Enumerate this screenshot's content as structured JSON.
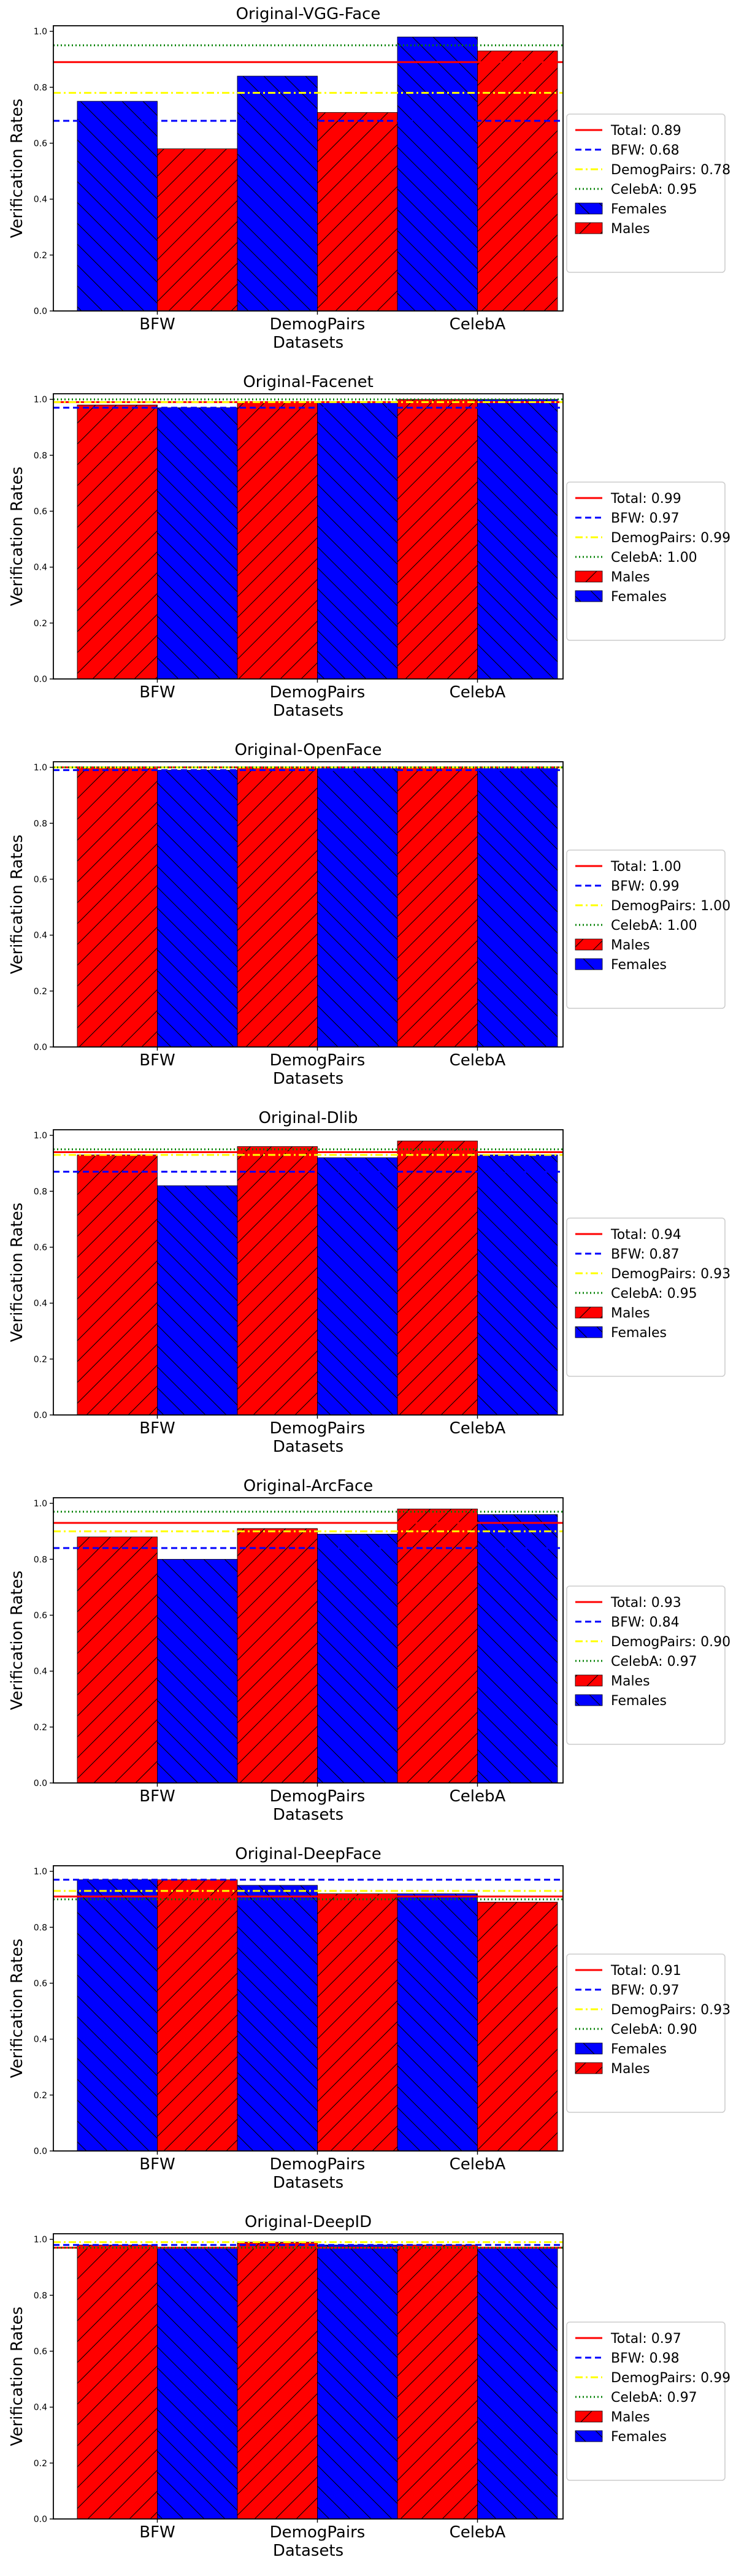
{
  "figure": {
    "background": "#ffffff"
  },
  "chart_data": [
    {
      "type": "bar",
      "title": "Original-VGG-Face",
      "xlabel": "Datasets",
      "ylabel": "Verification Rates",
      "categories": [
        "BFW",
        "DemogPairs",
        "CelebA"
      ],
      "ylim": [
        0,
        1.02
      ],
      "yticks": [
        "0.0",
        "0.2",
        "0.4",
        "0.6",
        "0.8",
        "1.0"
      ],
      "series": [
        {
          "name": "Females",
          "values": [
            0.75,
            0.84,
            0.98
          ],
          "color": "#0000ff",
          "hatch": "backslash"
        },
        {
          "name": "Males",
          "values": [
            0.58,
            0.71,
            0.93
          ],
          "color": "#ff0000",
          "hatch": "slash"
        }
      ],
      "lines": [
        {
          "name": "Total: 0.89",
          "value": 0.89,
          "color": "#ff0000",
          "style": "solid"
        },
        {
          "name": "BFW: 0.68",
          "value": 0.68,
          "color": "#0000ff",
          "style": "dashed"
        },
        {
          "name": "DemogPairs: 0.78",
          "value": 0.78,
          "color": "#ffff00",
          "style": "dashdot"
        },
        {
          "name": "CelebA: 0.95",
          "value": 0.95,
          "color": "#008000",
          "style": "dotted"
        }
      ],
      "legend_position": "right"
    },
    {
      "type": "bar",
      "title": "Original-Facenet",
      "xlabel": "Datasets",
      "ylabel": "Verification Rates",
      "categories": [
        "BFW",
        "DemogPairs",
        "CelebA"
      ],
      "ylim": [
        0,
        1.02
      ],
      "yticks": [
        "0.0",
        "0.2",
        "0.4",
        "0.6",
        "0.8",
        "1.0"
      ],
      "series": [
        {
          "name": "Males",
          "values": [
            0.98,
            0.99,
            1.0
          ],
          "color": "#ff0000",
          "hatch": "slash"
        },
        {
          "name": "Females",
          "values": [
            0.97,
            0.99,
            1.0
          ],
          "color": "#0000ff",
          "hatch": "backslash"
        }
      ],
      "lines": [
        {
          "name": "Total: 0.99",
          "value": 0.99,
          "color": "#ff0000",
          "style": "solid"
        },
        {
          "name": "BFW: 0.97",
          "value": 0.97,
          "color": "#0000ff",
          "style": "dashed"
        },
        {
          "name": "DemogPairs: 0.99",
          "value": 0.99,
          "color": "#ffff00",
          "style": "dashdot"
        },
        {
          "name": "CelebA: 1.00",
          "value": 1.0,
          "color": "#008000",
          "style": "dotted"
        }
      ],
      "legend_position": "right"
    },
    {
      "type": "bar",
      "title": "Original-OpenFace",
      "xlabel": "Datasets",
      "ylabel": "Verification Rates",
      "categories": [
        "BFW",
        "DemogPairs",
        "CelebA"
      ],
      "ylim": [
        0,
        1.02
      ],
      "yticks": [
        "0.0",
        "0.2",
        "0.4",
        "0.6",
        "0.8",
        "1.0"
      ],
      "series": [
        {
          "name": "Males",
          "values": [
            1.0,
            1.0,
            1.0
          ],
          "color": "#ff0000",
          "hatch": "slash"
        },
        {
          "name": "Females",
          "values": [
            0.99,
            1.0,
            1.0
          ],
          "color": "#0000ff",
          "hatch": "backslash"
        }
      ],
      "lines": [
        {
          "name": "Total: 1.00",
          "value": 1.0,
          "color": "#ff0000",
          "style": "solid"
        },
        {
          "name": "BFW: 0.99",
          "value": 0.99,
          "color": "#0000ff",
          "style": "dashed"
        },
        {
          "name": "DemogPairs: 1.00",
          "value": 1.0,
          "color": "#ffff00",
          "style": "dashdot"
        },
        {
          "name": "CelebA: 1.00",
          "value": 1.0,
          "color": "#008000",
          "style": "dotted"
        }
      ],
      "legend_position": "right"
    },
    {
      "type": "bar",
      "title": "Original-Dlib",
      "xlabel": "Datasets",
      "ylabel": "Verification Rates",
      "categories": [
        "BFW",
        "DemogPairs",
        "CelebA"
      ],
      "ylim": [
        0,
        1.02
      ],
      "yticks": [
        "0.0",
        "0.2",
        "0.4",
        "0.6",
        "0.8",
        "1.0"
      ],
      "series": [
        {
          "name": "Males",
          "values": [
            0.93,
            0.96,
            0.98
          ],
          "color": "#ff0000",
          "hatch": "slash"
        },
        {
          "name": "Females",
          "values": [
            0.82,
            0.92,
            0.93
          ],
          "color": "#0000ff",
          "hatch": "backslash"
        }
      ],
      "lines": [
        {
          "name": "Total: 0.94",
          "value": 0.94,
          "color": "#ff0000",
          "style": "solid"
        },
        {
          "name": "BFW: 0.87",
          "value": 0.87,
          "color": "#0000ff",
          "style": "dashed"
        },
        {
          "name": "DemogPairs: 0.93",
          "value": 0.93,
          "color": "#ffff00",
          "style": "dashdot"
        },
        {
          "name": "CelebA: 0.95",
          "value": 0.95,
          "color": "#008000",
          "style": "dotted"
        }
      ],
      "legend_position": "right"
    },
    {
      "type": "bar",
      "title": "Original-ArcFace",
      "xlabel": "Datasets",
      "ylabel": "Verification Rates",
      "categories": [
        "BFW",
        "DemogPairs",
        "CelebA"
      ],
      "ylim": [
        0,
        1.02
      ],
      "yticks": [
        "0.0",
        "0.2",
        "0.4",
        "0.6",
        "0.8",
        "1.0"
      ],
      "series": [
        {
          "name": "Males",
          "values": [
            0.88,
            0.91,
            0.98
          ],
          "color": "#ff0000",
          "hatch": "slash"
        },
        {
          "name": "Females",
          "values": [
            0.8,
            0.89,
            0.96
          ],
          "color": "#0000ff",
          "hatch": "backslash"
        }
      ],
      "lines": [
        {
          "name": "Total: 0.93",
          "value": 0.93,
          "color": "#ff0000",
          "style": "solid"
        },
        {
          "name": "BFW: 0.84",
          "value": 0.84,
          "color": "#0000ff",
          "style": "dashed"
        },
        {
          "name": "DemogPairs: 0.90",
          "value": 0.9,
          "color": "#ffff00",
          "style": "dashdot"
        },
        {
          "name": "CelebA: 0.97",
          "value": 0.97,
          "color": "#008000",
          "style": "dotted"
        }
      ],
      "legend_position": "right"
    },
    {
      "type": "bar",
      "title": "Original-DeepFace",
      "xlabel": "Datasets",
      "ylabel": "Verification Rates",
      "categories": [
        "BFW",
        "DemogPairs",
        "CelebA"
      ],
      "ylim": [
        0,
        1.02
      ],
      "yticks": [
        "0.0",
        "0.2",
        "0.4",
        "0.6",
        "0.8",
        "1.0"
      ],
      "series": [
        {
          "name": "Females",
          "values": [
            0.97,
            0.95,
            0.92
          ],
          "color": "#0000ff",
          "hatch": "backslash"
        },
        {
          "name": "Males",
          "values": [
            0.97,
            0.92,
            0.89
          ],
          "color": "#ff0000",
          "hatch": "slash"
        }
      ],
      "lines": [
        {
          "name": "Total: 0.91",
          "value": 0.91,
          "color": "#ff0000",
          "style": "solid"
        },
        {
          "name": "BFW: 0.97",
          "value": 0.97,
          "color": "#0000ff",
          "style": "dashed"
        },
        {
          "name": "DemogPairs: 0.93",
          "value": 0.93,
          "color": "#ffff00",
          "style": "dashdot"
        },
        {
          "name": "CelebA: 0.90",
          "value": 0.9,
          "color": "#008000",
          "style": "dotted"
        }
      ],
      "legend_position": "right"
    },
    {
      "type": "bar",
      "title": "Original-DeepID",
      "xlabel": "Datasets",
      "ylabel": "Verification Rates",
      "categories": [
        "BFW",
        "DemogPairs",
        "CelebA"
      ],
      "ylim": [
        0,
        1.02
      ],
      "yticks": [
        "0.0",
        "0.2",
        "0.4",
        "0.6",
        "0.8",
        "1.0"
      ],
      "series": [
        {
          "name": "Males",
          "values": [
            0.98,
            0.99,
            0.98
          ],
          "color": "#ff0000",
          "hatch": "slash"
        },
        {
          "name": "Females",
          "values": [
            0.97,
            0.98,
            0.97
          ],
          "color": "#0000ff",
          "hatch": "backslash"
        }
      ],
      "lines": [
        {
          "name": "Total: 0.97",
          "value": 0.97,
          "color": "#ff0000",
          "style": "solid"
        },
        {
          "name": "BFW: 0.98",
          "value": 0.98,
          "color": "#0000ff",
          "style": "dashed"
        },
        {
          "name": "DemogPairs: 0.99",
          "value": 0.99,
          "color": "#ffff00",
          "style": "dashdot"
        },
        {
          "name": "CelebA: 0.97",
          "value": 0.97,
          "color": "#008000",
          "style": "dotted"
        }
      ],
      "legend_position": "right"
    }
  ]
}
